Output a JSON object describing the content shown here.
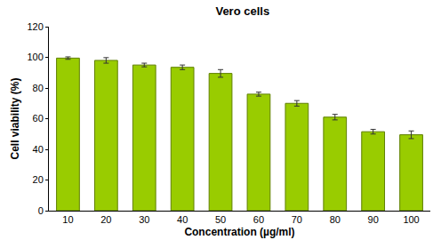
{
  "chart_data": {
    "type": "bar",
    "title": "Vero cells",
    "x_label": "Concentration (µg/ml)",
    "y_label": "Cell viability (%)",
    "categories": [
      "10",
      "20",
      "30",
      "40",
      "50",
      "60",
      "70",
      "80",
      "90",
      "100"
    ],
    "values": [
      99.5,
      98,
      95,
      93.5,
      89.5,
      76,
      70,
      61,
      51.5,
      49.5
    ],
    "errors": [
      0.8,
      1.8,
      1.2,
      1.5,
      2.5,
      1.3,
      1.8,
      1.8,
      1.5,
      2.5
    ],
    "color": "#99cc00",
    "ylim": [
      0,
      120
    ],
    "yticks": [
      0,
      20,
      40,
      60,
      80,
      100,
      120
    ],
    "grid": false
  }
}
